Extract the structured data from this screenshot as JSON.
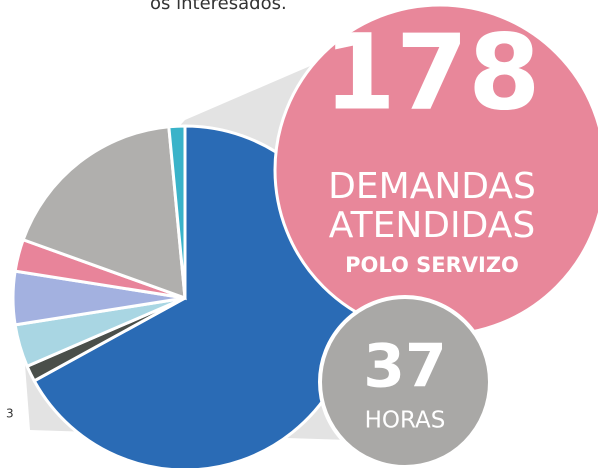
{
  "chart_data": {
    "type": "pie",
    "values": [
      67,
      1.5,
      4,
      5,
      3,
      18,
      1.5
    ],
    "colors": [
      "#2a6bb5",
      "#4a4f4a",
      "#a9d6e3",
      "#a3b1e0",
      "#e8849a",
      "#b0afad",
      "#3ab3c9"
    ]
  },
  "texts": {
    "intro": "os interesados.",
    "big_number": "178",
    "line1": "DEMANDAS",
    "line2": "ATENDIDAS",
    "line3": "POLO SERVIZO",
    "hours_number": "37",
    "hours_label": "HORAS",
    "footnote": "3"
  }
}
